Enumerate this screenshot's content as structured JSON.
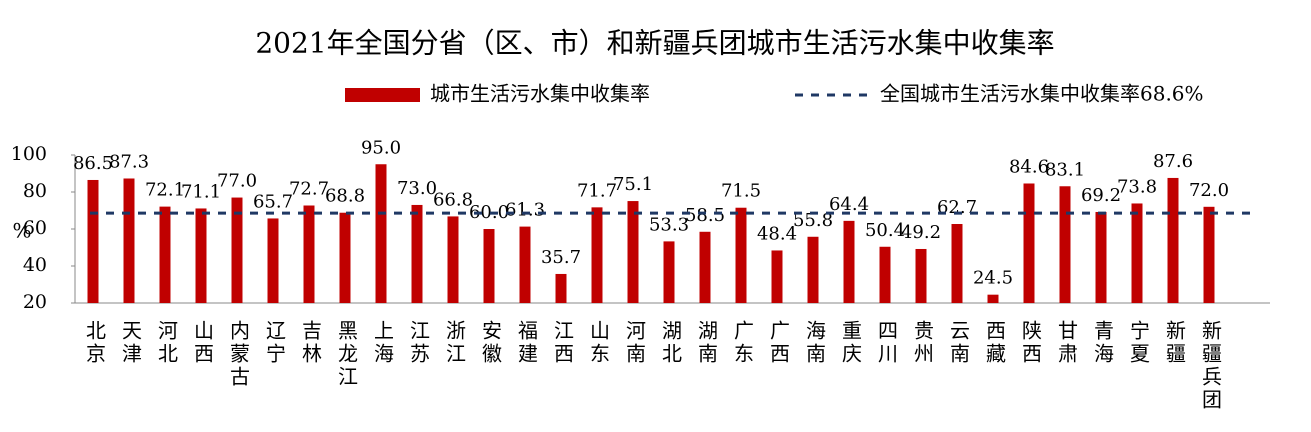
{
  "chart_data": {
    "type": "bar",
    "title": "2021年全国分省（区、市）和新疆兵团城市生活污水集中收集率",
    "y_label": "%",
    "categories": [
      "北京",
      "天津",
      "河北",
      "山西",
      "内蒙古",
      "辽宁",
      "吉林",
      "黑龙江",
      "上海",
      "江苏",
      "浙江",
      "安徽",
      "福建",
      "江西",
      "山东",
      "河南",
      "湖北",
      "湖南",
      "广东",
      "广西",
      "海南",
      "重庆",
      "四川",
      "贵州",
      "云南",
      "西藏",
      "陕西",
      "甘肃",
      "青海",
      "宁夏",
      "新疆",
      "新疆兵团"
    ],
    "series": [
      {
        "name": "城市生活污水集中收集率",
        "color": "#c00000",
        "values": [
          86.5,
          87.3,
          72.1,
          71.1,
          77.0,
          65.7,
          72.7,
          68.8,
          95.0,
          73.0,
          66.8,
          60.0,
          61.3,
          35.7,
          71.7,
          75.1,
          53.3,
          58.5,
          71.5,
          48.4,
          55.8,
          64.4,
          50.4,
          49.2,
          62.7,
          24.5,
          84.6,
          83.1,
          69.2,
          73.8,
          87.6,
          72.0
        ],
        "value_labels": [
          "86.5",
          "87.3",
          "72.1",
          "71.1",
          "77.0",
          "65.7",
          "72.7",
          "68.8",
          "95.0",
          "73.0",
          "66.8",
          "60.0",
          "61.3",
          "35.7",
          "71.7",
          "75.1",
          "53.3",
          "58.5",
          "71.5",
          "48.4",
          "55.8",
          "64.4",
          "50.4",
          "49.2",
          "62.7",
          "24.5",
          "84.6",
          "83.1",
          "69.2",
          "73.8",
          "87.6",
          "72.0"
        ]
      }
    ],
    "reference_line": {
      "value": 68.6,
      "label": "全国城市生活污水集中收集率68.6%",
      "color": "#1f3864"
    },
    "ylim": [
      20,
      100
    ],
    "yticks": [
      20,
      40,
      60,
      80,
      100
    ]
  }
}
